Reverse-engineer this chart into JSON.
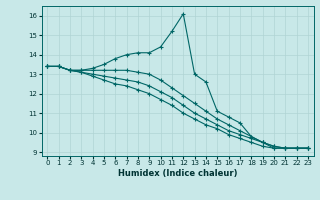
{
  "xlabel": "Humidex (Indice chaleur)",
  "bg_color": "#c8e8e8",
  "grid_color": "#b0d4d4",
  "line_color": "#006666",
  "xlim": [
    -0.5,
    23.5
  ],
  "ylim": [
    8.8,
    16.5
  ],
  "xticks": [
    0,
    1,
    2,
    3,
    4,
    5,
    6,
    7,
    8,
    9,
    10,
    11,
    12,
    13,
    14,
    15,
    16,
    17,
    18,
    19,
    20,
    21,
    22,
    23
  ],
  "yticks": [
    9,
    10,
    11,
    12,
    13,
    14,
    15,
    16
  ],
  "line1_x": [
    0,
    1,
    2,
    3,
    4,
    5,
    6,
    7,
    8,
    9,
    10,
    11,
    12,
    13,
    14,
    15,
    16,
    17,
    18,
    19,
    20,
    21,
    22,
    23
  ],
  "line1_y": [
    13.4,
    13.4,
    13.2,
    13.2,
    13.3,
    13.5,
    13.8,
    14.0,
    14.1,
    14.1,
    14.4,
    15.2,
    16.1,
    13.0,
    12.6,
    11.1,
    10.8,
    10.5,
    9.8,
    9.5,
    9.2,
    9.2,
    9.2,
    9.2
  ],
  "line2_x": [
    0,
    1,
    2,
    3,
    4,
    5,
    6,
    7,
    8,
    9,
    10,
    11,
    12,
    13,
    14,
    15,
    16,
    17,
    18,
    19,
    20,
    21,
    22,
    23
  ],
  "line2_y": [
    13.4,
    13.4,
    13.2,
    13.2,
    13.2,
    13.2,
    13.2,
    13.2,
    13.1,
    13.0,
    12.7,
    12.3,
    11.9,
    11.5,
    11.1,
    10.7,
    10.4,
    10.1,
    9.8,
    9.5,
    9.3,
    9.2,
    9.2,
    9.2
  ],
  "line3_x": [
    0,
    1,
    2,
    3,
    4,
    5,
    6,
    7,
    8,
    9,
    10,
    11,
    12,
    13,
    14,
    15,
    16,
    17,
    18,
    19,
    20,
    21,
    22,
    23
  ],
  "line3_y": [
    13.4,
    13.4,
    13.2,
    13.1,
    13.0,
    12.9,
    12.8,
    12.7,
    12.6,
    12.4,
    12.1,
    11.8,
    11.4,
    11.0,
    10.7,
    10.4,
    10.1,
    9.9,
    9.7,
    9.5,
    9.3,
    9.2,
    9.2,
    9.2
  ],
  "line4_x": [
    0,
    1,
    2,
    3,
    4,
    5,
    6,
    7,
    8,
    9,
    10,
    11,
    12,
    13,
    14,
    15,
    16,
    17,
    18,
    19,
    20,
    21,
    22,
    23
  ],
  "line4_y": [
    13.4,
    13.4,
    13.2,
    13.1,
    12.9,
    12.7,
    12.5,
    12.4,
    12.2,
    12.0,
    11.7,
    11.4,
    11.0,
    10.7,
    10.4,
    10.2,
    9.9,
    9.7,
    9.5,
    9.3,
    9.2,
    9.2,
    9.2,
    9.2
  ]
}
